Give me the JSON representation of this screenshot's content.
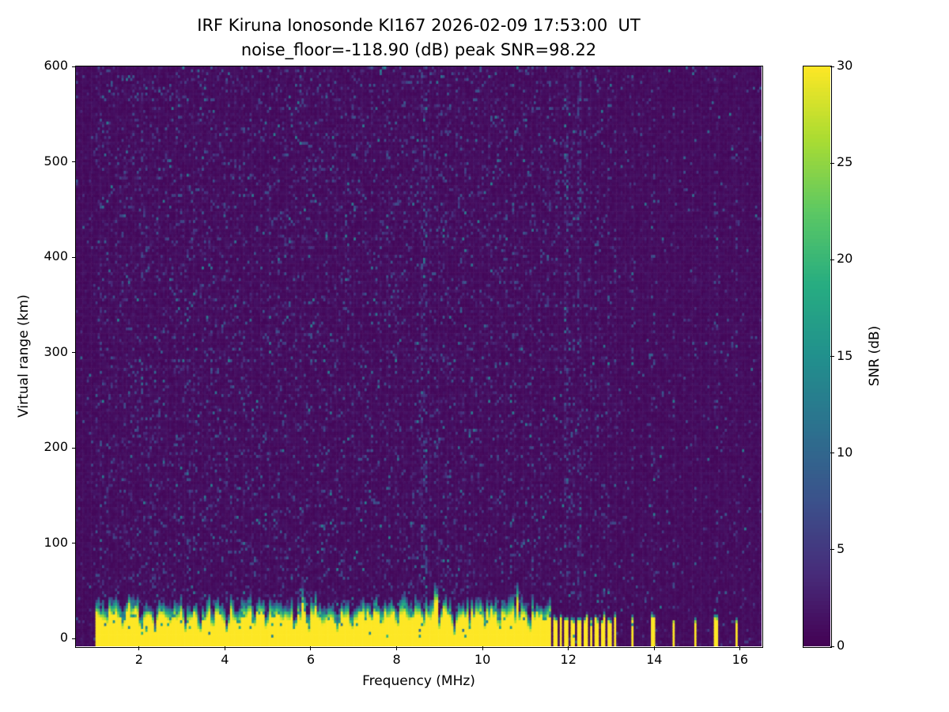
{
  "chart_data": {
    "type": "heatmap",
    "title": "IRF Kiruna Ionosonde KI167 2026-02-09 17:53:00  UT",
    "subtitle": "noise_floor=-118.90 (dB) peak SNR=98.22",
    "xlabel": "Frequency (MHz)",
    "ylabel": "Virtual range (km)",
    "colorbar_label": "SNR (dB)",
    "colormap": "viridis",
    "xlim": [
      0.53,
      16.5
    ],
    "ylim": [
      -8,
      600
    ],
    "clim": [
      0,
      30
    ],
    "x_ticks": [
      2,
      4,
      6,
      8,
      10,
      12,
      14,
      16
    ],
    "y_ticks": [
      0,
      100,
      200,
      300,
      400,
      500,
      600
    ],
    "colorbar_ticks": [
      0,
      5,
      10,
      15,
      20,
      25,
      30
    ],
    "colormap_stops": [
      [
        0,
        68,
        1,
        84
      ],
      [
        0.125,
        71,
        44,
        122
      ],
      [
        0.25,
        59,
        81,
        139
      ],
      [
        0.375,
        44,
        113,
        142
      ],
      [
        0.5,
        33,
        144,
        141
      ],
      [
        0.625,
        39,
        173,
        129
      ],
      [
        0.75,
        92,
        200,
        99
      ],
      [
        0.875,
        170,
        220,
        50
      ],
      [
        1,
        253,
        231,
        37
      ]
    ],
    "sweep": {
      "start_mhz": 1.0,
      "continuous_end_mhz": 11.62,
      "end_mhz": 16.45
    },
    "ground_band": {
      "solid_top_km": 25,
      "fade_top_km": 45,
      "peak_snr": 30
    },
    "band_notches_mhz": [
      1.28,
      1.62,
      2.05,
      2.38,
      2.72,
      3.08,
      3.42,
      3.72,
      4.05,
      4.32,
      4.68,
      4.98,
      5.32,
      5.62,
      5.95,
      6.28,
      6.62,
      6.95,
      7.3,
      7.65,
      8.0,
      8.35,
      8.65,
      9.0,
      9.35,
      9.7,
      10.05,
      10.4,
      10.75,
      11.1,
      11.45
    ],
    "stepped_stripes_mhz": [
      11.7,
      11.83,
      11.97,
      12.11,
      12.25,
      12.39,
      12.53,
      12.67,
      12.81,
      12.95,
      13.09,
      13.49,
      13.97,
      14.45,
      14.96,
      15.44,
      15.92
    ],
    "tall_noise_columns_mhz": [
      8.65,
      11.97,
      12.25
    ],
    "noise": {
      "seed": 20260209,
      "background_snr_max": 1.6,
      "speckle_snr_max": 9,
      "speckle_density_sweep": 0.16,
      "speckle_density_stepped": 0.05
    }
  }
}
